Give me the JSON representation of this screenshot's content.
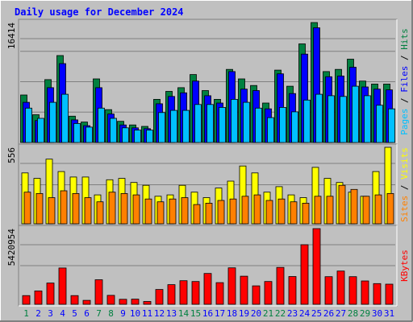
{
  "chart_data": {
    "type": "bar",
    "title": "Daily usage for December 2024",
    "colors": {
      "background": "#c0c0c0",
      "hits": "#008040",
      "files": "#0000ff",
      "pages": "#00c0ff",
      "visits": "#ffff00",
      "sites": "#ff8000",
      "kbytes": "#ff0000",
      "title": "#0000ff",
      "weekend": "#008040",
      "weekday": "#0000ff"
    },
    "x": [
      "1",
      "2",
      "3",
      "4",
      "5",
      "6",
      "7",
      "8",
      "9",
      "10",
      "11",
      "12",
      "13",
      "14",
      "15",
      "16",
      "17",
      "18",
      "19",
      "20",
      "21",
      "22",
      "23",
      "24",
      "25",
      "26",
      "27",
      "28",
      "29",
      "30",
      "31"
    ],
    "weekend_days": [
      "1",
      "7",
      "8",
      "14",
      "15",
      "21",
      "22",
      "28",
      "29"
    ],
    "panels": [
      {
        "id": "hits-files-pages",
        "ymax_label": "16414",
        "ymax": 16414,
        "series": [
          {
            "key": "hits",
            "name": "Hits",
            "values": [
              6500,
              3800,
              8600,
              11900,
              3600,
              2800,
              8700,
              4500,
              2900,
              2400,
              2200,
              5900,
              7000,
              7500,
              9300,
              7100,
              5900,
              10000,
              8700,
              7800,
              5400,
              9900,
              7700,
              13500,
              16414,
              9700,
              10000,
              11400,
              8400,
              8000,
              8000
            ]
          },
          {
            "key": "files",
            "name": "Files",
            "values": [
              5500,
              3000,
              7500,
              10800,
              3100,
              2300,
              7500,
              3900,
              2400,
              2000,
              1900,
              5300,
              6300,
              6800,
              8400,
              6400,
              5400,
              9700,
              7300,
              7100,
              4600,
              9400,
              6700,
              12100,
              15700,
              9000,
              9100,
              10300,
              7600,
              7300,
              7200
            ]
          },
          {
            "key": "pages",
            "name": "Pages",
            "values": [
              4700,
              3300,
              5500,
              6600,
              2600,
              2100,
              4700,
              3300,
              2000,
              1700,
              1700,
              4100,
              4400,
              4400,
              5200,
              5200,
              4800,
              5900,
              5500,
              4700,
              3400,
              4800,
              4200,
              5800,
              6600,
              6400,
              6300,
              7700,
              6400,
              5100,
              4600
            ]
          }
        ]
      },
      {
        "id": "visits-sites",
        "ymax_label": "556",
        "ymax": 556,
        "series": [
          {
            "key": "visits",
            "name": "Visits",
            "values": [
              370,
              330,
              470,
              380,
              340,
              340,
              210,
              320,
              330,
              300,
              280,
              200,
              210,
              280,
              230,
              190,
              260,
              310,
              420,
              370,
              230,
              270,
              210,
              190,
              410,
              330,
              300,
              230,
              200,
              380,
              556
            ]
          },
          {
            "key": "sites",
            "name": "Sites",
            "values": [
              230,
              220,
              190,
              240,
              220,
              190,
              160,
              230,
              220,
              210,
              180,
              160,
              180,
              190,
              140,
              150,
              170,
              180,
              200,
              210,
              170,
              180,
              160,
              150,
              200,
              200,
              280,
              250,
              200,
              210,
              220
            ]
          }
        ]
      },
      {
        "id": "kbytes",
        "ymax_label": "5420954",
        "ymax": 5420954,
        "series": [
          {
            "key": "kbytes",
            "name": "KBytes",
            "values": [
              620000,
              960000,
              1520000,
              2600000,
              620000,
              280000,
              1760000,
              640000,
              360000,
              370000,
              200000,
              1060000,
              1410000,
              1690000,
              1630000,
              2210000,
              1550000,
              2610000,
              2010000,
              1320000,
              1630000,
              2640000,
              1990000,
              4270000,
              5420954,
              1980000,
              2380000,
              1980000,
              1670000,
              1480000,
              1440000
            ]
          }
        ]
      }
    ]
  }
}
